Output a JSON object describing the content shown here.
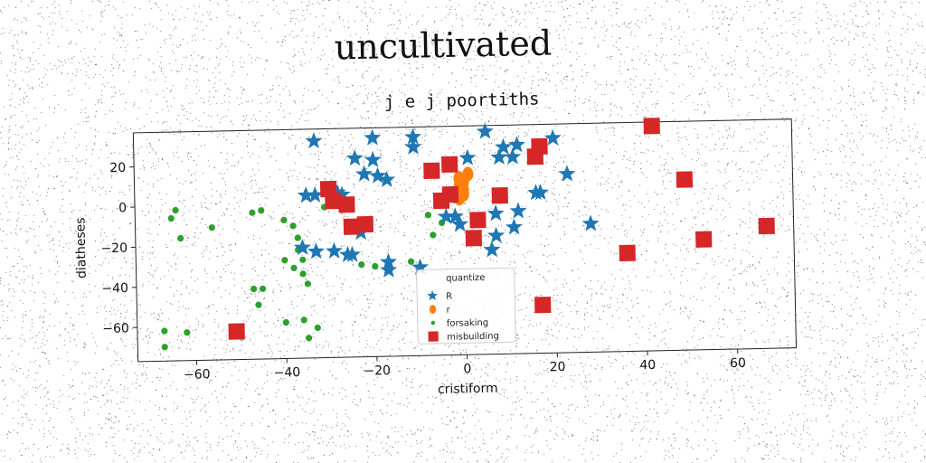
{
  "chart_data": {
    "type": "scatter",
    "suptitle": "uncultivated",
    "title": "j e j poortiths",
    "xlabel": "cristiform",
    "ylabel": "diatheses",
    "xlim": [
      -73,
      73
    ],
    "ylim": [
      -77,
      37
    ],
    "xticks": [
      -60,
      -40,
      -20,
      0,
      20,
      40,
      60
    ],
    "yticks": [
      -60,
      -40,
      -20,
      0,
      20
    ],
    "legend": {
      "title": "quantize",
      "placement": "lower-center"
    },
    "series": [
      {
        "name": "R",
        "marker": "star",
        "color": "#1f77b4",
        "points": [
          [
            -33,
            31
          ],
          [
            -20,
            32
          ],
          [
            -11,
            32
          ],
          [
            -11,
            27
          ],
          [
            5,
            34
          ],
          [
            9,
            26
          ],
          [
            12,
            27
          ],
          [
            20,
            30
          ],
          [
            -24,
            22
          ],
          [
            -20,
            21
          ],
          [
            1,
            21
          ],
          [
            8,
            21
          ],
          [
            11,
            21
          ],
          [
            -22,
            14
          ],
          [
            -19,
            13
          ],
          [
            -17,
            11
          ],
          [
            23,
            12
          ],
          [
            -35,
            4
          ],
          [
            -33,
            4
          ],
          [
            -28,
            5
          ],
          [
            -27,
            4
          ],
          [
            -1,
            4
          ],
          [
            16,
            3
          ],
          [
            17,
            3
          ],
          [
            -4,
            -8
          ],
          [
            -2,
            -8
          ],
          [
            7,
            -7
          ],
          [
            12,
            -6
          ],
          [
            -1,
            -12
          ],
          [
            -23,
            -15
          ],
          [
            7,
            -18
          ],
          [
            11,
            -14
          ],
          [
            28,
            -13
          ],
          [
            -36,
            -22
          ],
          [
            -33,
            -24
          ],
          [
            -29,
            -24
          ],
          [
            -26,
            -26
          ],
          [
            -25,
            -26
          ],
          [
            6,
            -25
          ],
          [
            -17,
            -30
          ],
          [
            -17,
            -34
          ],
          [
            -10,
            -33
          ]
        ]
      },
      {
        "name": "r",
        "marker": "circle",
        "color": "#ff7f0e",
        "points": [
          [
            -1,
            11
          ],
          [
            -1,
            7
          ],
          [
            0,
            5
          ],
          [
            0,
            3
          ],
          [
            -1,
            1
          ],
          [
            1,
            13
          ],
          [
            0,
            9
          ],
          [
            -2,
            2
          ]
        ]
      },
      {
        "name": "forsaking",
        "marker": "dot",
        "color": "#2ca02c",
        "points": [
          [
            -64,
            -2
          ],
          [
            -65,
            -6
          ],
          [
            -63,
            -16
          ],
          [
            -56,
            -11
          ],
          [
            -47,
            -4
          ],
          [
            -45,
            -3
          ],
          [
            -40,
            -8
          ],
          [
            -38,
            -11
          ],
          [
            -37,
            -17
          ],
          [
            -37,
            -23
          ],
          [
            -40,
            -28
          ],
          [
            -38,
            -32
          ],
          [
            -36,
            -35
          ],
          [
            -35,
            -40
          ],
          [
            -31,
            -2
          ],
          [
            -23,
            -31
          ],
          [
            -8,
            -7
          ],
          [
            -5,
            -11
          ],
          [
            -7,
            -17
          ],
          [
            -47,
            -42
          ],
          [
            -45,
            -42
          ],
          [
            -46,
            -50
          ],
          [
            -40,
            -59
          ],
          [
            -36,
            -58
          ],
          [
            -35,
            -67
          ],
          [
            -33,
            -62
          ],
          [
            -62,
            -63
          ],
          [
            -67,
            -62
          ],
          [
            -67,
            -70
          ],
          [
            -36,
            -28
          ],
          [
            -20,
            -32
          ],
          [
            -12,
            -30
          ]
        ]
      },
      {
        "name": "misbuilding",
        "marker": "square",
        "color": "#d62728",
        "points": [
          [
            -30,
            7
          ],
          [
            -29,
            1
          ],
          [
            -26,
            -1
          ],
          [
            -25,
            -12
          ],
          [
            -22,
            -11
          ],
          [
            -7,
            15
          ],
          [
            -3,
            18
          ],
          [
            -5,
            0
          ],
          [
            -3,
            3
          ],
          [
            3,
            -10
          ],
          [
            2,
            -19
          ],
          [
            8,
            2
          ],
          [
            16,
            21
          ],
          [
            17,
            26
          ],
          [
            42,
            35
          ],
          [
            49,
            8
          ],
          [
            53,
            -22
          ],
          [
            67,
            -16
          ],
          [
            36,
            -28
          ],
          [
            17,
            -53
          ],
          [
            -51,
            -63
          ]
        ]
      }
    ]
  }
}
